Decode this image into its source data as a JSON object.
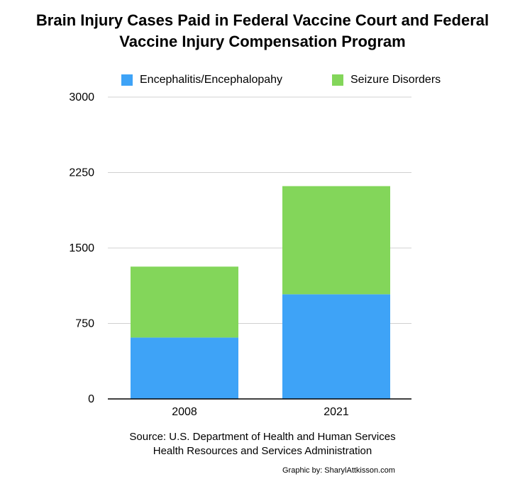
{
  "chart_data": {
    "type": "bar",
    "stacked": true,
    "title_lines": [
      "Brain Injury Cases Paid in Federal Vaccine Court and Federal",
      "Vaccine Injury Compensation Program"
    ],
    "categories": [
      "2008",
      "2021"
    ],
    "series": [
      {
        "name": "Encephalitis/Encephalopahy",
        "color": "#3ea3f7",
        "values": [
          610,
          1040
        ]
      },
      {
        "name": "Seizure Disorders",
        "color": "#83d65a",
        "values": [
          705,
          1075
        ]
      }
    ],
    "ylim": [
      0,
      3000
    ],
    "yticks": [
      "0",
      "750",
      "1500",
      "2250",
      "3000"
    ],
    "grid": true,
    "legend_position": "top"
  },
  "source": {
    "line1": "Source: U.S. Department of Health and Human Services",
    "line2": "Health Resources and Services Administration"
  },
  "credit": "Graphic by: SharylAttkisson.com"
}
